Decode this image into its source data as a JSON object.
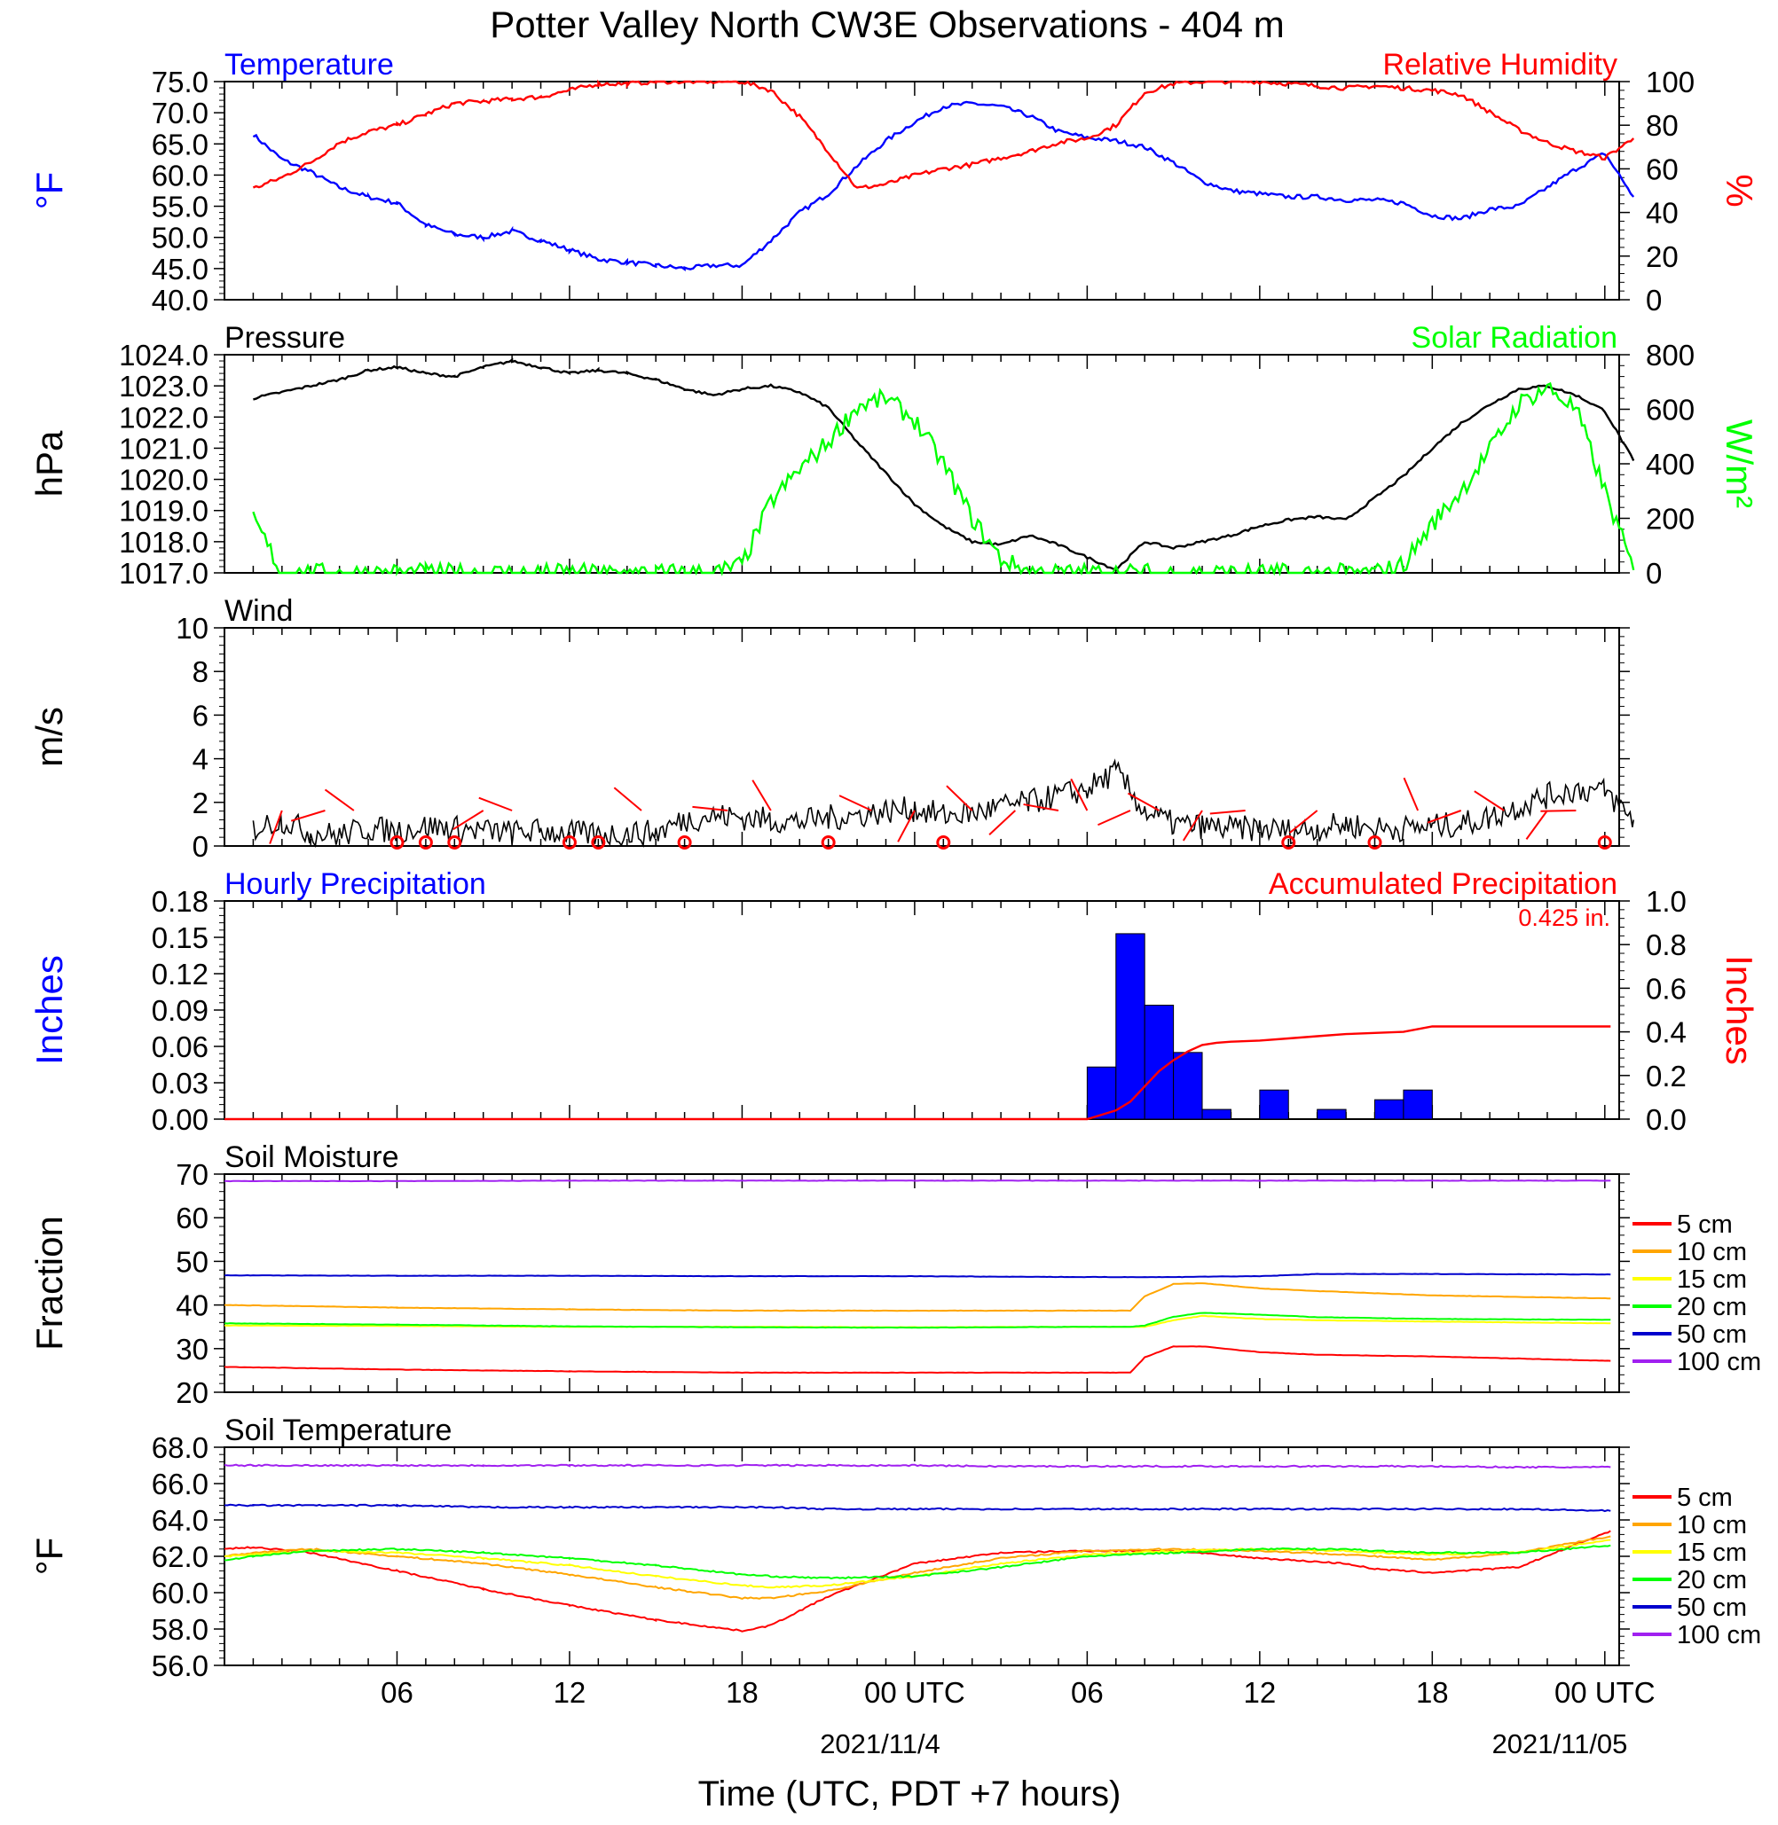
{
  "title": "Potter Valley North CW3E Observations - 404 m",
  "xaxis": {
    "label": "Time (UTC, PDT +7 hours)",
    "ticks": [
      "06",
      "12",
      "18",
      "00 UTC",
      "06",
      "12",
      "18",
      "00 UTC"
    ],
    "dates": [
      "2021/11/4",
      "2021/11/05"
    ]
  },
  "chart_data": [
    {
      "id": "temp_rh",
      "type": "line",
      "left_title": "Temperature",
      "right_title": "Relative Humidity",
      "ylabel_left": "°F",
      "ylabel_right": "%",
      "ylim_left": [
        40,
        75
      ],
      "ylim_right": [
        0,
        100
      ],
      "yticks_left": [
        "75.0",
        "70.0",
        "65.0",
        "60.0",
        "55.0",
        "50.0",
        "45.0",
        "40.0"
      ],
      "yticks_right": [
        "100",
        "80",
        "60",
        "40",
        "20",
        "0"
      ],
      "colors": {
        "left": "#0000ff",
        "right": "#ff0000"
      },
      "x_hours": [
        1,
        2,
        3,
        4,
        5,
        6,
        7,
        8,
        9,
        10,
        11,
        12,
        13,
        14,
        15,
        16,
        17,
        18,
        19,
        20,
        21,
        22,
        23,
        24,
        25,
        26,
        27,
        28,
        29,
        30,
        31,
        32,
        33,
        34,
        35,
        36,
        37,
        38,
        39,
        40,
        41,
        42,
        43,
        44,
        45,
        46,
        47,
        48,
        49
      ],
      "series": [
        {
          "name": "Temperature",
          "axis": "left",
          "values": [
            66.5,
            62.5,
            60.5,
            58,
            56.5,
            55.5,
            52,
            50.5,
            50,
            51,
            49.5,
            48,
            46.5,
            46,
            45.5,
            45,
            45.5,
            45.5,
            49.5,
            54,
            57,
            61.5,
            65.5,
            68.5,
            71,
            71.5,
            71,
            69.5,
            67,
            66,
            65.5,
            64.5,
            62,
            59,
            57.5,
            57,
            56.5,
            56.5,
            56,
            56,
            55.5,
            53.5,
            53,
            54.5,
            55,
            58,
            61,
            63.5,
            56.5
          ]
        },
        {
          "name": "Relative Humidity",
          "axis": "right",
          "values": [
            51,
            56,
            63,
            72,
            77,
            80,
            85,
            90,
            91,
            92,
            93,
            96,
            99,
            99,
            100,
            100,
            100,
            100,
            96,
            84,
            68,
            51,
            53,
            57,
            60,
            62,
            65,
            68,
            72,
            74,
            80,
            95,
            99,
            100,
            100,
            100,
            99,
            98,
            97,
            98,
            97,
            96,
            94,
            86,
            78,
            72,
            68,
            65,
            74
          ]
        }
      ]
    },
    {
      "id": "pressure_solar",
      "type": "line",
      "left_title": "Pressure",
      "right_title": "Solar Radiation",
      "ylabel_left": "hPa",
      "ylabel_right": "W/m²",
      "ylim_left": [
        1017,
        1024
      ],
      "ylim_right": [
        0,
        800
      ],
      "yticks_left": [
        "1024.0",
        "1023.0",
        "1022.0",
        "1021.0",
        "1020.0",
        "1019.0",
        "1018.0",
        "1017.0"
      ],
      "yticks_right": [
        "800",
        "600",
        "400",
        "200",
        "0"
      ],
      "colors": {
        "left": "#000000",
        "right": "#00ff00"
      },
      "x_hours": [
        1,
        2,
        3,
        4,
        5,
        6,
        7,
        8,
        9,
        10,
        11,
        12,
        13,
        14,
        15,
        16,
        17,
        18,
        19,
        20,
        21,
        22,
        23,
        24,
        25,
        26,
        27,
        28,
        29,
        30,
        31,
        32,
        33,
        34,
        35,
        36,
        37,
        38,
        39,
        40,
        41,
        42,
        43,
        44,
        45,
        46,
        47,
        48,
        49
      ],
      "series": [
        {
          "name": "Pressure",
          "axis": "left",
          "values": [
            1022.6,
            1022.8,
            1023,
            1023.2,
            1023.5,
            1023.6,
            1023.4,
            1023.3,
            1023.6,
            1023.8,
            1023.6,
            1023.4,
            1023.5,
            1023.4,
            1023.2,
            1022.9,
            1022.7,
            1022.9,
            1023,
            1022.8,
            1022.3,
            1021.2,
            1020.2,
            1019.2,
            1018.5,
            1018,
            1017.9,
            1018.2,
            1017.9,
            1017.5,
            1017.1,
            1018,
            1017.8,
            1018,
            1018.2,
            1018.5,
            1018.7,
            1018.8,
            1018.7,
            1019.4,
            1020.1,
            1021,
            1021.8,
            1022.4,
            1022.9,
            1023,
            1022.7,
            1022.2,
            1020.6
          ]
        },
        {
          "name": "Solar Radiation",
          "axis": "right",
          "values": [
            200,
            0,
            0,
            0,
            0,
            0,
            0,
            0,
            0,
            0,
            0,
            0,
            0,
            0,
            0,
            0,
            0,
            30,
            260,
            380,
            480,
            610,
            640,
            560,
            400,
            200,
            50,
            5,
            0,
            0,
            0,
            0,
            0,
            0,
            0,
            0,
            0,
            0,
            0,
            0,
            30,
            180,
            300,
            450,
            620,
            680,
            600,
            300,
            10
          ]
        }
      ]
    },
    {
      "id": "wind",
      "type": "line",
      "left_title": "Wind",
      "ylabel_left": "m/s",
      "ylim_left": [
        0,
        10
      ],
      "yticks_left": [
        "10",
        "8",
        "6",
        "4",
        "2",
        "0"
      ],
      "colors": {
        "line": "#000000",
        "barbs": "#ff0000"
      },
      "x_hours": [
        1,
        2,
        3,
        4,
        5,
        6,
        7,
        8,
        9,
        10,
        11,
        12,
        13,
        14,
        15,
        16,
        17,
        18,
        19,
        20,
        21,
        22,
        23,
        24,
        25,
        26,
        27,
        28,
        29,
        30,
        31,
        32,
        33,
        34,
        35,
        36,
        37,
        38,
        39,
        40,
        41,
        42,
        43,
        44,
        45,
        46,
        47,
        48,
        49
      ],
      "series": [
        {
          "name": "Wind Speed",
          "axis": "left",
          "values": [
            0.8,
            1.2,
            0.6,
            0.5,
            0.8,
            0.7,
            0.9,
            0.8,
            0.7,
            0.6,
            0.7,
            0.6,
            0.5,
            0.6,
            0.6,
            1.2,
            1.4,
            1.3,
            1.2,
            1.1,
            1.3,
            1.4,
            1.6,
            1.7,
            1.4,
            1.5,
            1.8,
            2.0,
            2.3,
            2.6,
            3.4,
            1.6,
            1.0,
            0.9,
            0.8,
            0.8,
            0.7,
            0.8,
            1.0,
            0.8,
            0.8,
            0.9,
            1.0,
            1.3,
            1.8,
            2.3,
            2.6,
            2.5,
            1.2
          ]
        }
      ],
      "barbs": [
        {
          "x": 2.0,
          "calm": false
        },
        {
          "x": 3.5,
          "calm": false
        },
        {
          "x": 4.5,
          "calm": false
        },
        {
          "x": 6.0,
          "calm": true
        },
        {
          "x": 7.0,
          "calm": true
        },
        {
          "x": 8.0,
          "calm": true
        },
        {
          "x": 9.0,
          "calm": false
        },
        {
          "x": 10.0,
          "calm": false
        },
        {
          "x": 12.0,
          "calm": true
        },
        {
          "x": 13.0,
          "calm": true
        },
        {
          "x": 14.5,
          "calm": false
        },
        {
          "x": 16.0,
          "calm": true
        },
        {
          "x": 17.5,
          "calm": false
        },
        {
          "x": 19.0,
          "calm": false
        },
        {
          "x": 21.0,
          "calm": true
        },
        {
          "x": 22.5,
          "calm": false
        },
        {
          "x": 24.0,
          "calm": false
        },
        {
          "x": 25.0,
          "calm": true
        },
        {
          "x": 26.0,
          "calm": false
        },
        {
          "x": 27.5,
          "calm": false
        },
        {
          "x": 29.0,
          "calm": false
        },
        {
          "x": 30.0,
          "calm": false
        },
        {
          "x": 31.5,
          "calm": false
        },
        {
          "x": 32.5,
          "calm": false
        },
        {
          "x": 34.0,
          "calm": false
        },
        {
          "x": 35.5,
          "calm": false
        },
        {
          "x": 37.0,
          "calm": true
        },
        {
          "x": 38.0,
          "calm": false
        },
        {
          "x": 40.0,
          "calm": true
        },
        {
          "x": 41.5,
          "calm": false
        },
        {
          "x": 43.0,
          "calm": false
        },
        {
          "x": 44.5,
          "calm": false
        },
        {
          "x": 46.0,
          "calm": false
        },
        {
          "x": 47.0,
          "calm": false
        },
        {
          "x": 48.0,
          "calm": true
        }
      ]
    },
    {
      "id": "precip",
      "type": "bar",
      "left_title": "Hourly Precipitation",
      "right_title": "Accumulated Precipitation",
      "annotation": "0.425 in.",
      "ylabel_left": "Inches",
      "ylabel_right": "Inches",
      "ylim_left": [
        0,
        0.18
      ],
      "ylim_right": [
        0,
        1.0
      ],
      "yticks_left": [
        "0.18",
        "0.15",
        "0.12",
        "0.09",
        "0.06",
        "0.03",
        "0.00"
      ],
      "yticks_right": [
        "1.0",
        "0.8",
        "0.6",
        "0.4",
        "0.2",
        "0.0"
      ],
      "colors": {
        "bars": "#0000ff",
        "line": "#ff0000"
      },
      "bars": [
        {
          "hour": 31,
          "value": 0.043
        },
        {
          "hour": 32,
          "value": 0.153
        },
        {
          "hour": 33,
          "value": 0.094
        },
        {
          "hour": 34,
          "value": 0.055
        },
        {
          "hour": 35,
          "value": 0.008
        },
        {
          "hour": 37,
          "value": 0.024
        },
        {
          "hour": 39,
          "value": 0.008
        },
        {
          "hour": 41,
          "value": 0.016
        },
        {
          "hour": 42,
          "value": 0.024
        }
      ],
      "accumulated": {
        "x_hours": [
          0,
          29,
          30,
          30.5,
          31,
          31.5,
          32,
          32.5,
          33,
          33.5,
          34,
          34.5,
          35,
          36,
          37,
          38,
          39,
          40,
          41,
          42,
          43,
          48.2
        ],
        "values": [
          0,
          0,
          0,
          0.02,
          0.04,
          0.08,
          0.15,
          0.22,
          0.27,
          0.31,
          0.34,
          0.35,
          0.355,
          0.36,
          0.37,
          0.38,
          0.39,
          0.395,
          0.4,
          0.425,
          0.425,
          0.425
        ]
      }
    },
    {
      "id": "soil_moisture",
      "type": "line",
      "left_title": "Soil Moisture",
      "ylabel_left": "Fraction",
      "ylim_left": [
        20,
        70
      ],
      "yticks_left": [
        "70",
        "60",
        "50",
        "40",
        "30",
        "20"
      ],
      "legend_position": "right",
      "x_hours": [
        0,
        6,
        12,
        18,
        24,
        30,
        31.5,
        32,
        33,
        34,
        36,
        38,
        42,
        48.2
      ],
      "series": [
        {
          "name": "5 cm",
          "color": "#ff0000",
          "values": [
            25.8,
            25.2,
            24.8,
            24.5,
            24.5,
            24.5,
            24.5,
            28,
            30.5,
            30.5,
            29.2,
            28.6,
            28.2,
            27.2
          ]
        },
        {
          "name": "10 cm",
          "color": "#ffa500",
          "values": [
            40,
            39.4,
            39,
            38.7,
            38.7,
            38.7,
            38.7,
            42,
            44.8,
            45,
            43.8,
            43.2,
            42.2,
            41.5
          ]
        },
        {
          "name": "15 cm",
          "color": "#ffff00",
          "values": [
            35.3,
            35.2,
            35,
            35,
            34.9,
            35,
            35,
            35,
            36.5,
            37.5,
            36.8,
            36.5,
            36.2,
            35.8
          ]
        },
        {
          "name": "20 cm",
          "color": "#00ff00",
          "values": [
            35.8,
            35.5,
            35.1,
            34.9,
            34.8,
            35,
            35,
            35.3,
            37.3,
            38.2,
            37.8,
            37.2,
            36.8,
            36.6
          ]
        },
        {
          "name": "50 cm",
          "color": "#0000cd",
          "values": [
            46.8,
            46.7,
            46.7,
            46.6,
            46.6,
            46.4,
            46.4,
            46.4,
            46.4,
            46.5,
            46.6,
            47.1,
            47.1,
            47.0
          ]
        },
        {
          "name": "100 cm",
          "color": "#a020f0",
          "values": [
            68.4,
            68.4,
            68.5,
            68.5,
            68.5,
            68.5,
            68.5,
            68.5,
            68.5,
            68.5,
            68.5,
            68.5,
            68.5,
            68.5
          ]
        }
      ]
    },
    {
      "id": "soil_temp",
      "type": "line",
      "left_title": "Soil Temperature",
      "ylabel_left": "°F",
      "ylim_left": [
        56,
        68
      ],
      "yticks_left": [
        "68.0",
        "66.0",
        "64.0",
        "62.0",
        "60.0",
        "58.0",
        "56.0"
      ],
      "legend_position": "right",
      "x_hours": [
        0,
        1,
        3,
        6,
        9,
        12,
        15,
        18,
        19,
        21,
        24,
        27,
        30,
        33,
        36,
        39,
        40,
        42,
        45,
        48.2
      ],
      "series": [
        {
          "name": "5 cm",
          "color": "#ff0000",
          "values": [
            62.4,
            62.5,
            62.2,
            61.2,
            60.2,
            59.3,
            58.5,
            57.9,
            58.2,
            59.8,
            61.6,
            62.2,
            62.3,
            62.3,
            61.9,
            61.6,
            61.3,
            61.1,
            61.4,
            63.4
          ]
        },
        {
          "name": "10 cm",
          "color": "#ffa500",
          "values": [
            62.0,
            62.2,
            62.4,
            62.0,
            61.6,
            61.0,
            60.3,
            59.7,
            59.7,
            60.1,
            61.1,
            61.9,
            62.3,
            62.4,
            62.3,
            62.1,
            62.0,
            61.8,
            62.2,
            63.1
          ]
        },
        {
          "name": "15 cm",
          "color": "#ffff00",
          "values": [
            62.0,
            62.1,
            62.3,
            62.2,
            61.9,
            61.5,
            60.9,
            60.4,
            60.3,
            60.4,
            60.9,
            61.6,
            62.1,
            62.3,
            62.4,
            62.3,
            62.2,
            62.1,
            62.2,
            62.9
          ]
        },
        {
          "name": "20 cm",
          "color": "#00ff00",
          "values": [
            61.8,
            62.0,
            62.3,
            62.4,
            62.2,
            61.9,
            61.5,
            61.0,
            60.9,
            60.8,
            60.9,
            61.4,
            62.0,
            62.2,
            62.4,
            62.4,
            62.3,
            62.2,
            62.2,
            62.6
          ]
        },
        {
          "name": "50 cm",
          "color": "#0000cd",
          "values": [
            64.8,
            64.8,
            64.8,
            64.8,
            64.7,
            64.7,
            64.7,
            64.7,
            64.7,
            64.6,
            64.6,
            64.6,
            64.6,
            64.6,
            64.6,
            64.6,
            64.6,
            64.6,
            64.6,
            64.5
          ]
        },
        {
          "name": "100 cm",
          "color": "#a020f0",
          "values": [
            67.0,
            67.0,
            67.0,
            67.0,
            67.0,
            67.0,
            67.0,
            67.0,
            67.0,
            67.0,
            67.0,
            66.95,
            66.95,
            66.95,
            66.95,
            66.95,
            66.95,
            66.95,
            66.9,
            66.9
          ]
        }
      ]
    }
  ]
}
